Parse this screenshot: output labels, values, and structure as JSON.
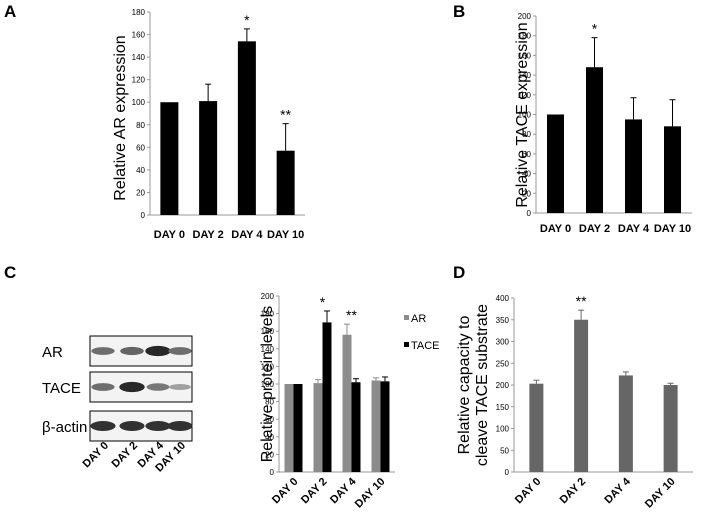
{
  "panels": {
    "a": "A",
    "b": "B",
    "c": "C",
    "d": "D"
  },
  "colors": {
    "black": "#000000",
    "gray_bar": "#8c8c8c",
    "d_bar": "#666666"
  },
  "blot": {
    "rows": [
      "AR",
      "TACE",
      "β-actin"
    ],
    "lanes": [
      "DAY 0",
      "DAY 2",
      "DAY 4",
      "DAY 10"
    ],
    "intensities": {
      "AR": [
        0.55,
        0.6,
        0.9,
        0.55
      ],
      "TACE": [
        0.55,
        0.9,
        0.5,
        0.3
      ],
      "β-actin": [
        0.85,
        0.85,
        0.85,
        0.85
      ]
    }
  },
  "chart_data": [
    {
      "id": "A",
      "type": "bar",
      "categories": [
        "DAY 0",
        "DAY 2",
        "DAY 4",
        "DAY 10"
      ],
      "series": [
        {
          "values": [
            100,
            101,
            154,
            57
          ],
          "errors": [
            0,
            15,
            11,
            24
          ]
        }
      ],
      "significance": [
        "",
        "",
        "*",
        "**"
      ],
      "ylabel": "Relative AR expression",
      "ylim": [
        0,
        180
      ],
      "yticks": [
        0,
        20,
        40,
        60,
        80,
        100,
        120,
        140,
        160,
        180
      ],
      "grid": false
    },
    {
      "id": "B",
      "type": "bar",
      "categories": [
        "DAY 0",
        "DAY 2",
        "DAY 4",
        "DAY 10"
      ],
      "series": [
        {
          "values": [
            100,
            148,
            95,
            88
          ],
          "errors": [
            0,
            30,
            22,
            27
          ]
        }
      ],
      "significance": [
        "",
        "*",
        "",
        ""
      ],
      "ylabel": "Relative TACE  expression",
      "ylim": [
        0,
        200
      ],
      "yticks": [
        0,
        20,
        40,
        60,
        80,
        100,
        120,
        140,
        160,
        180,
        200
      ],
      "grid": false
    },
    {
      "id": "C",
      "type": "bar",
      "categories": [
        "DAY 0",
        "DAY 2",
        "DAY 4",
        "DAY 10"
      ],
      "series": [
        {
          "name": "AR",
          "values": [
            100,
            101,
            156,
            104
          ],
          "errors": [
            0,
            4,
            12,
            3
          ]
        },
        {
          "name": "TACE",
          "values": [
            100,
            170,
            102,
            103
          ],
          "errors": [
            0,
            13,
            4,
            5
          ]
        }
      ],
      "significance": [
        "",
        "*",
        "**",
        ""
      ],
      "ylabel": "Relative protein levels",
      "ylim": [
        0,
        200
      ],
      "yticks": [
        0,
        20,
        40,
        60,
        80,
        100,
        120,
        140,
        160,
        180,
        200
      ],
      "legend": "right",
      "grid": false
    },
    {
      "id": "D",
      "type": "bar",
      "categories": [
        "DAY 0",
        "DAY 2",
        "DAY 4",
        "DAY 10"
      ],
      "series": [
        {
          "values": [
            203,
            350,
            222,
            200
          ],
          "errors": [
            8,
            22,
            8,
            4
          ]
        }
      ],
      "significance": [
        "",
        "**",
        "",
        ""
      ],
      "ylabel": [
        "Relative capacity to",
        "cleave TACE  substrate"
      ],
      "ylim": [
        0,
        400
      ],
      "yticks": [
        0,
        50,
        100,
        150,
        200,
        250,
        300,
        350,
        400
      ],
      "grid": false
    }
  ]
}
